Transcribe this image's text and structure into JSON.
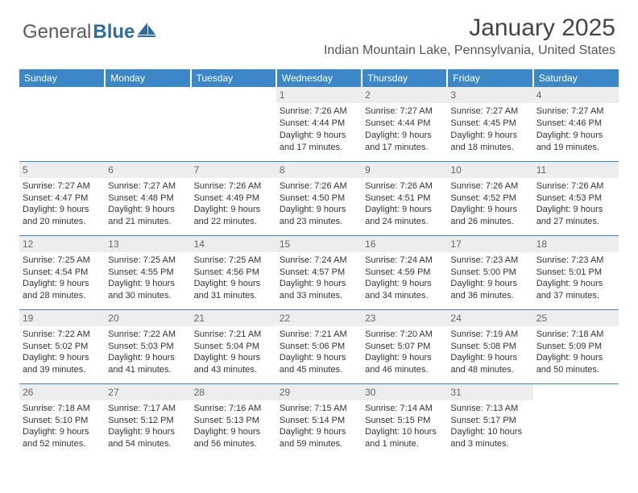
{
  "brand": {
    "part1": "General",
    "part2": "Blue"
  },
  "title": "January 2025",
  "location": "Indian Mountain Lake, Pennsylvania, United States",
  "colors": {
    "header_bg": "#3b87c8",
    "header_text": "#ffffff",
    "daynum_bg": "#ededed",
    "border": "#3b87c8",
    "text": "#333333",
    "logo_gray": "#5a5a5a",
    "logo_blue": "#2e6ca4"
  },
  "daysOfWeek": [
    "Sunday",
    "Monday",
    "Tuesday",
    "Wednesday",
    "Thursday",
    "Friday",
    "Saturday"
  ],
  "weeks": [
    [
      {
        "n": "",
        "lines": []
      },
      {
        "n": "",
        "lines": []
      },
      {
        "n": "",
        "lines": []
      },
      {
        "n": "1",
        "lines": [
          "Sunrise: 7:26 AM",
          "Sunset: 4:44 PM",
          "Daylight: 9 hours",
          "and 17 minutes."
        ]
      },
      {
        "n": "2",
        "lines": [
          "Sunrise: 7:27 AM",
          "Sunset: 4:44 PM",
          "Daylight: 9 hours",
          "and 17 minutes."
        ]
      },
      {
        "n": "3",
        "lines": [
          "Sunrise: 7:27 AM",
          "Sunset: 4:45 PM",
          "Daylight: 9 hours",
          "and 18 minutes."
        ]
      },
      {
        "n": "4",
        "lines": [
          "Sunrise: 7:27 AM",
          "Sunset: 4:46 PM",
          "Daylight: 9 hours",
          "and 19 minutes."
        ]
      }
    ],
    [
      {
        "n": "5",
        "lines": [
          "Sunrise: 7:27 AM",
          "Sunset: 4:47 PM",
          "Daylight: 9 hours",
          "and 20 minutes."
        ]
      },
      {
        "n": "6",
        "lines": [
          "Sunrise: 7:27 AM",
          "Sunset: 4:48 PM",
          "Daylight: 9 hours",
          "and 21 minutes."
        ]
      },
      {
        "n": "7",
        "lines": [
          "Sunrise: 7:26 AM",
          "Sunset: 4:49 PM",
          "Daylight: 9 hours",
          "and 22 minutes."
        ]
      },
      {
        "n": "8",
        "lines": [
          "Sunrise: 7:26 AM",
          "Sunset: 4:50 PM",
          "Daylight: 9 hours",
          "and 23 minutes."
        ]
      },
      {
        "n": "9",
        "lines": [
          "Sunrise: 7:26 AM",
          "Sunset: 4:51 PM",
          "Daylight: 9 hours",
          "and 24 minutes."
        ]
      },
      {
        "n": "10",
        "lines": [
          "Sunrise: 7:26 AM",
          "Sunset: 4:52 PM",
          "Daylight: 9 hours",
          "and 26 minutes."
        ]
      },
      {
        "n": "11",
        "lines": [
          "Sunrise: 7:26 AM",
          "Sunset: 4:53 PM",
          "Daylight: 9 hours",
          "and 27 minutes."
        ]
      }
    ],
    [
      {
        "n": "12",
        "lines": [
          "Sunrise: 7:25 AM",
          "Sunset: 4:54 PM",
          "Daylight: 9 hours",
          "and 28 minutes."
        ]
      },
      {
        "n": "13",
        "lines": [
          "Sunrise: 7:25 AM",
          "Sunset: 4:55 PM",
          "Daylight: 9 hours",
          "and 30 minutes."
        ]
      },
      {
        "n": "14",
        "lines": [
          "Sunrise: 7:25 AM",
          "Sunset: 4:56 PM",
          "Daylight: 9 hours",
          "and 31 minutes."
        ]
      },
      {
        "n": "15",
        "lines": [
          "Sunrise: 7:24 AM",
          "Sunset: 4:57 PM",
          "Daylight: 9 hours",
          "and 33 minutes."
        ]
      },
      {
        "n": "16",
        "lines": [
          "Sunrise: 7:24 AM",
          "Sunset: 4:59 PM",
          "Daylight: 9 hours",
          "and 34 minutes."
        ]
      },
      {
        "n": "17",
        "lines": [
          "Sunrise: 7:23 AM",
          "Sunset: 5:00 PM",
          "Daylight: 9 hours",
          "and 36 minutes."
        ]
      },
      {
        "n": "18",
        "lines": [
          "Sunrise: 7:23 AM",
          "Sunset: 5:01 PM",
          "Daylight: 9 hours",
          "and 37 minutes."
        ]
      }
    ],
    [
      {
        "n": "19",
        "lines": [
          "Sunrise: 7:22 AM",
          "Sunset: 5:02 PM",
          "Daylight: 9 hours",
          "and 39 minutes."
        ]
      },
      {
        "n": "20",
        "lines": [
          "Sunrise: 7:22 AM",
          "Sunset: 5:03 PM",
          "Daylight: 9 hours",
          "and 41 minutes."
        ]
      },
      {
        "n": "21",
        "lines": [
          "Sunrise: 7:21 AM",
          "Sunset: 5:04 PM",
          "Daylight: 9 hours",
          "and 43 minutes."
        ]
      },
      {
        "n": "22",
        "lines": [
          "Sunrise: 7:21 AM",
          "Sunset: 5:06 PM",
          "Daylight: 9 hours",
          "and 45 minutes."
        ]
      },
      {
        "n": "23",
        "lines": [
          "Sunrise: 7:20 AM",
          "Sunset: 5:07 PM",
          "Daylight: 9 hours",
          "and 46 minutes."
        ]
      },
      {
        "n": "24",
        "lines": [
          "Sunrise: 7:19 AM",
          "Sunset: 5:08 PM",
          "Daylight: 9 hours",
          "and 48 minutes."
        ]
      },
      {
        "n": "25",
        "lines": [
          "Sunrise: 7:18 AM",
          "Sunset: 5:09 PM",
          "Daylight: 9 hours",
          "and 50 minutes."
        ]
      }
    ],
    [
      {
        "n": "26",
        "lines": [
          "Sunrise: 7:18 AM",
          "Sunset: 5:10 PM",
          "Daylight: 9 hours",
          "and 52 minutes."
        ]
      },
      {
        "n": "27",
        "lines": [
          "Sunrise: 7:17 AM",
          "Sunset: 5:12 PM",
          "Daylight: 9 hours",
          "and 54 minutes."
        ]
      },
      {
        "n": "28",
        "lines": [
          "Sunrise: 7:16 AM",
          "Sunset: 5:13 PM",
          "Daylight: 9 hours",
          "and 56 minutes."
        ]
      },
      {
        "n": "29",
        "lines": [
          "Sunrise: 7:15 AM",
          "Sunset: 5:14 PM",
          "Daylight: 9 hours",
          "and 59 minutes."
        ]
      },
      {
        "n": "30",
        "lines": [
          "Sunrise: 7:14 AM",
          "Sunset: 5:15 PM",
          "Daylight: 10 hours",
          "and 1 minute."
        ]
      },
      {
        "n": "31",
        "lines": [
          "Sunrise: 7:13 AM",
          "Sunset: 5:17 PM",
          "Daylight: 10 hours",
          "and 3 minutes."
        ]
      },
      {
        "n": "",
        "lines": []
      }
    ]
  ]
}
